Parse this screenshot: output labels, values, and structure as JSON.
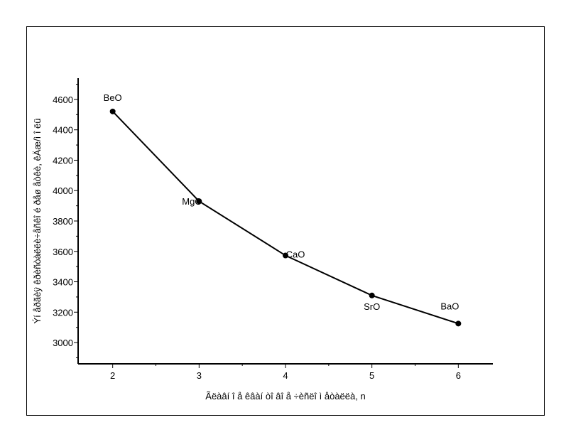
{
  "chart_data": {
    "type": "line",
    "xlabel": "Ãëàâí î å êâàí òî âî å ÷èñëî  ì åòàëëà, n",
    "ylabel": "Ýí åðãèÿ êðèñòàëëè÷åñêî é ðåø åòêè, êÄæ/ì î ëü",
    "x": [
      2,
      3,
      4,
      5,
      6
    ],
    "y": [
      4521,
      3930,
      3573,
      3310,
      3125
    ],
    "point_labels": [
      "BeO",
      "MgO",
      "CaO",
      "SrO",
      "BaO"
    ],
    "xlim": [
      1.6,
      6.4
    ],
    "ylim": [
      2860,
      4740
    ],
    "xticks": [
      2,
      3,
      4,
      5,
      6
    ],
    "yticks": [
      3000,
      3200,
      3400,
      3600,
      3800,
      4000,
      4200,
      4400,
      4600
    ],
    "grid": false,
    "line_color": "#000000",
    "marker_color": "#000000"
  }
}
